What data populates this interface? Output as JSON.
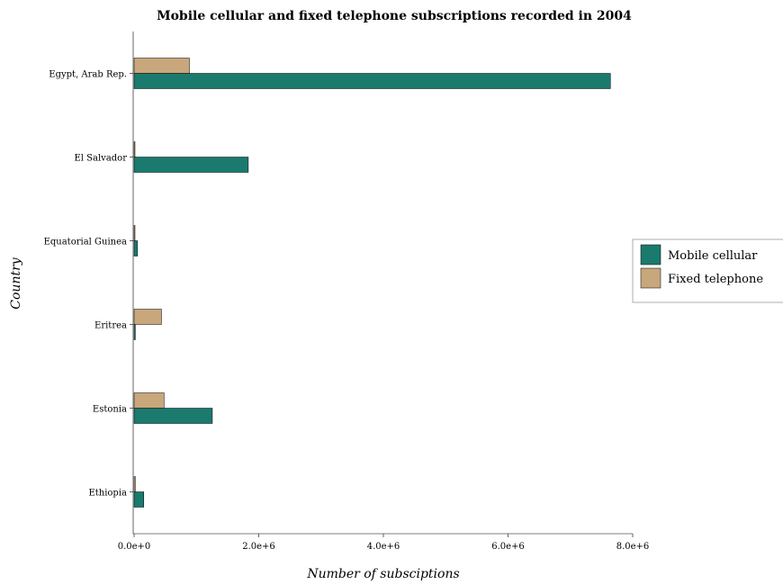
{
  "chart_data": {
    "type": "bar",
    "orientation": "horizontal",
    "title": "Mobile cellular and fixed telephone subscriptions recorded in 2004",
    "xlabel": "Number of subsciptions",
    "ylabel": "Country",
    "categories": [
      "Egypt, Arab Rep.",
      "El Salvador",
      "Equatorial Guinea",
      "Eritrea",
      "Estonia",
      "Ethiopia"
    ],
    "series": [
      {
        "name": "Mobile cellular",
        "color": "#1a7a6e",
        "values": [
          7643000,
          1832500,
          55500,
          20000,
          1255700,
          155500
        ]
      },
      {
        "name": "Fixed telephone",
        "color": "#c8a77c",
        "values": [
          888000,
          11000,
          10000,
          440000,
          481000,
          20000
        ]
      }
    ],
    "xlim": [
      0,
      8000000
    ],
    "xticks": [
      0,
      2000000,
      4000000,
      6000000,
      8000000
    ],
    "xtick_labels": [
      "0.0e+0",
      "2.0e+6",
      "4.0e+6",
      "6.0e+6",
      "8.0e+6"
    ],
    "legend_position": "center-right",
    "grid": false
  }
}
